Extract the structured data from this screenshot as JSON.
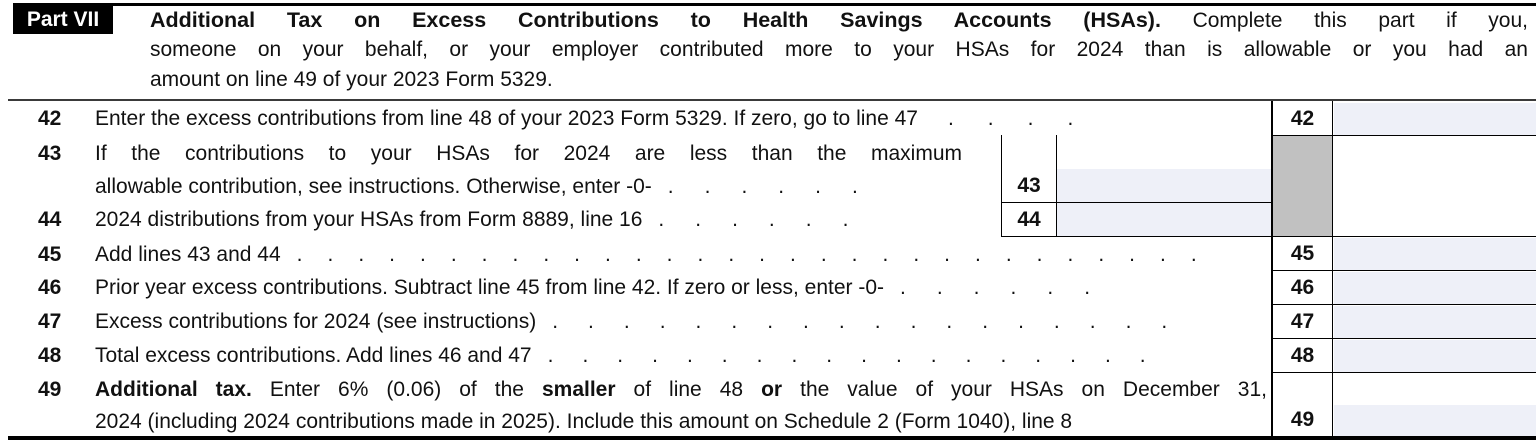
{
  "header": {
    "part_label": "Part VII",
    "title": "Additional Tax on Excess Contributions to Health Savings Accounts (HSAs).",
    "instructions_line1": "Complete this part if you,",
    "instructions_line2": "someone on your behalf, or your employer contributed more to your HSAs for 2024 than is allowable or you had an",
    "instructions_line3": "amount on line 49 of your 2023 Form 5329."
  },
  "lines": {
    "l42": {
      "num": "42",
      "text": "Enter the excess contributions from line 48 of your 2023 Form 5329. If zero, go to line 47",
      "leader": "....",
      "box_label": "42",
      "amount": ""
    },
    "l43": {
      "num": "43",
      "text_line1": "If the contributions to your HSAs for 2024 are less than the maximum",
      "text_line2": "allowable contribution, see instructions. Otherwise, enter -0-",
      "leader": "......",
      "box_label": "43",
      "amount": ""
    },
    "l44": {
      "num": "44",
      "text": "2024 distributions from your HSAs from Form 8889, line 16",
      "leader": "......",
      "box_label": "44",
      "amount": ""
    },
    "l45": {
      "num": "45",
      "text": "Add lines 43 and 44",
      "leader": "..............................",
      "box_label": "45",
      "amount": ""
    },
    "l46": {
      "num": "46",
      "text": "Prior year excess contributions. Subtract line 45 from line 42. If zero or less, enter -0-",
      "leader": "......",
      "box_label": "46",
      "amount": ""
    },
    "l47": {
      "num": "47",
      "text": "Excess contributions for 2024 (see instructions)",
      "leader": "..................",
      "box_label": "47",
      "amount": ""
    },
    "l48": {
      "num": "48",
      "text": "Total excess contributions. Add lines 46 and 47",
      "leader": "..................",
      "box_label": "48",
      "amount": ""
    },
    "l49": {
      "num": "49",
      "text_bold1": "Additional tax.",
      "text_seg2": " Enter 6% (0.06) of the ",
      "text_bold2": "smaller",
      "text_seg3": " of line 48 ",
      "text_bold3": "or",
      "text_seg4": " the value of your HSAs on December 31,",
      "text_line2": "2024 (including 2024 contributions made in 2025). Include this amount on Schedule 2 (Form 1040), line 8",
      "box_label": "49",
      "amount": ""
    }
  },
  "colors": {
    "field_bg": "#eef0f8",
    "shaded_cell": "#c1c1c1",
    "badge_bg": "#000000",
    "badge_text": "#ffffff"
  }
}
